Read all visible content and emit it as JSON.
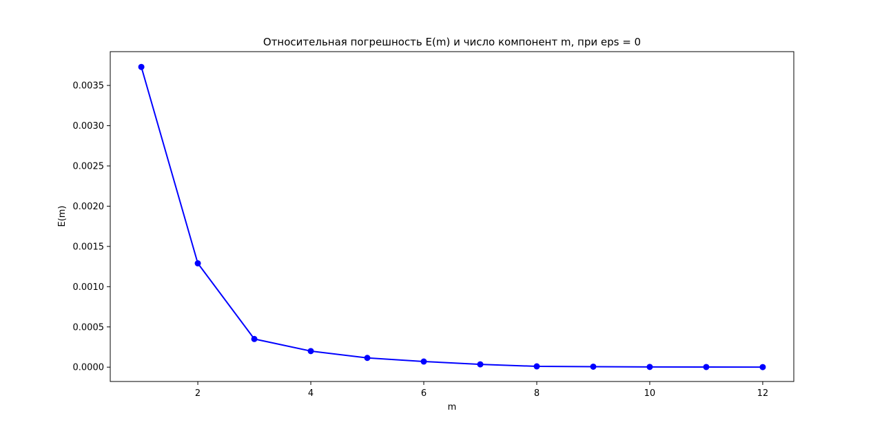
{
  "chart_data": {
    "type": "line",
    "title": "Относительная погрешность E(m) и число компонент m, при eps = 0",
    "xlabel": "m",
    "ylabel": "E(m)",
    "xlim": [
      0.45,
      12.55
    ],
    "ylim": [
      -0.000178,
      0.00392
    ],
    "xticks": [
      2,
      4,
      6,
      8,
      10,
      12
    ],
    "xtick_labels": [
      "2",
      "4",
      "6",
      "8",
      "10",
      "12"
    ],
    "yticks": [
      0,
      0.0005,
      0.001,
      0.0015,
      0.002,
      0.0025,
      0.003,
      0.0035
    ],
    "ytick_labels": [
      "0.0000",
      "0.0005",
      "0.0010",
      "0.0015",
      "0.0020",
      "0.0025",
      "0.0030",
      "0.0035"
    ],
    "grid": false,
    "series": [
      {
        "color": "#0000ff",
        "marker": "circle",
        "x": [
          1,
          2,
          3,
          4,
          5,
          6,
          7,
          8,
          9,
          10,
          11,
          12
        ],
        "y": [
          0.00373,
          0.00129,
          0.00035,
          0.0002,
          0.000115,
          7e-05,
          3.5e-05,
          1e-05,
          6e-06,
          3e-06,
          2e-06,
          1e-06
        ]
      }
    ]
  }
}
